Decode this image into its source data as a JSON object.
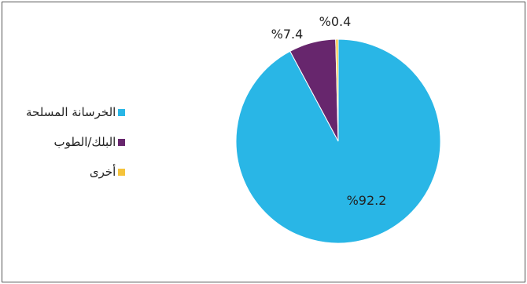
{
  "chart_data": {
    "type": "pie",
    "title": "",
    "categories": [
      "الخرسانة المسلحة",
      "البلك/الطوب",
      "أخرى"
    ],
    "values": [
      92.2,
      7.4,
      0.4
    ],
    "labels": [
      "%92.2",
      "%7.4",
      "%0.4"
    ],
    "colors": [
      "#29B6E6",
      "#67266D",
      "#F5C33B"
    ],
    "start_angle_deg": 0,
    "direction": "clockwise",
    "legend_position": "left"
  }
}
